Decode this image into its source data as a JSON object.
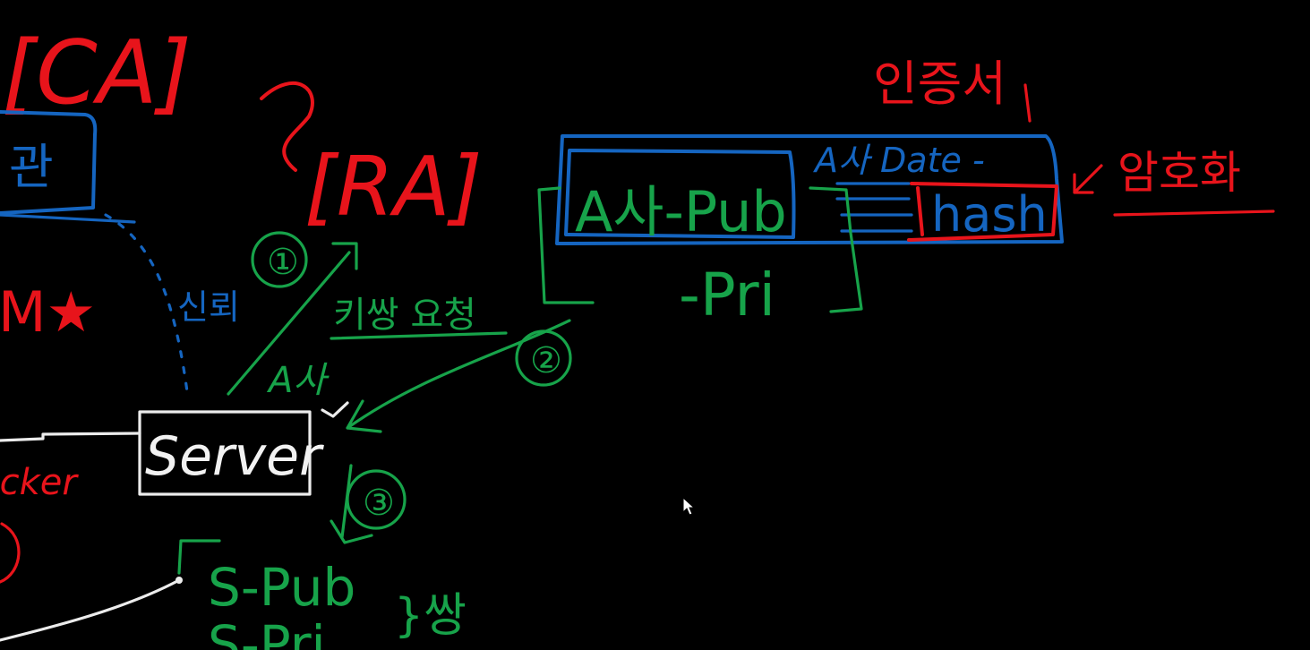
{
  "labels": {
    "ca": "[CA]",
    "ra": "[RA]",
    "cert": "인증서",
    "encrypt": "암호화",
    "a_pub": "A사-Pub",
    "a_pri": "-Pri",
    "a_date": "A사 Date -",
    "hash": "hash",
    "step1": "①",
    "step2": "②",
    "step3": "③",
    "request": "키쌍 요청",
    "company_a": "A사",
    "server": "Server",
    "hacker": "Hacker",
    "s_pub": "S-Pub",
    "s_pri": "S-Pri",
    "pair": "}쌍",
    "trust": "신뢰",
    "left_blue": "관",
    "star_text": "M★"
  },
  "colors": {
    "background": "#000000",
    "red": "#e8141b",
    "blue": "#1565c0",
    "green": "#17a34a",
    "white": "#ececec"
  },
  "cursor": "arrow-cursor"
}
